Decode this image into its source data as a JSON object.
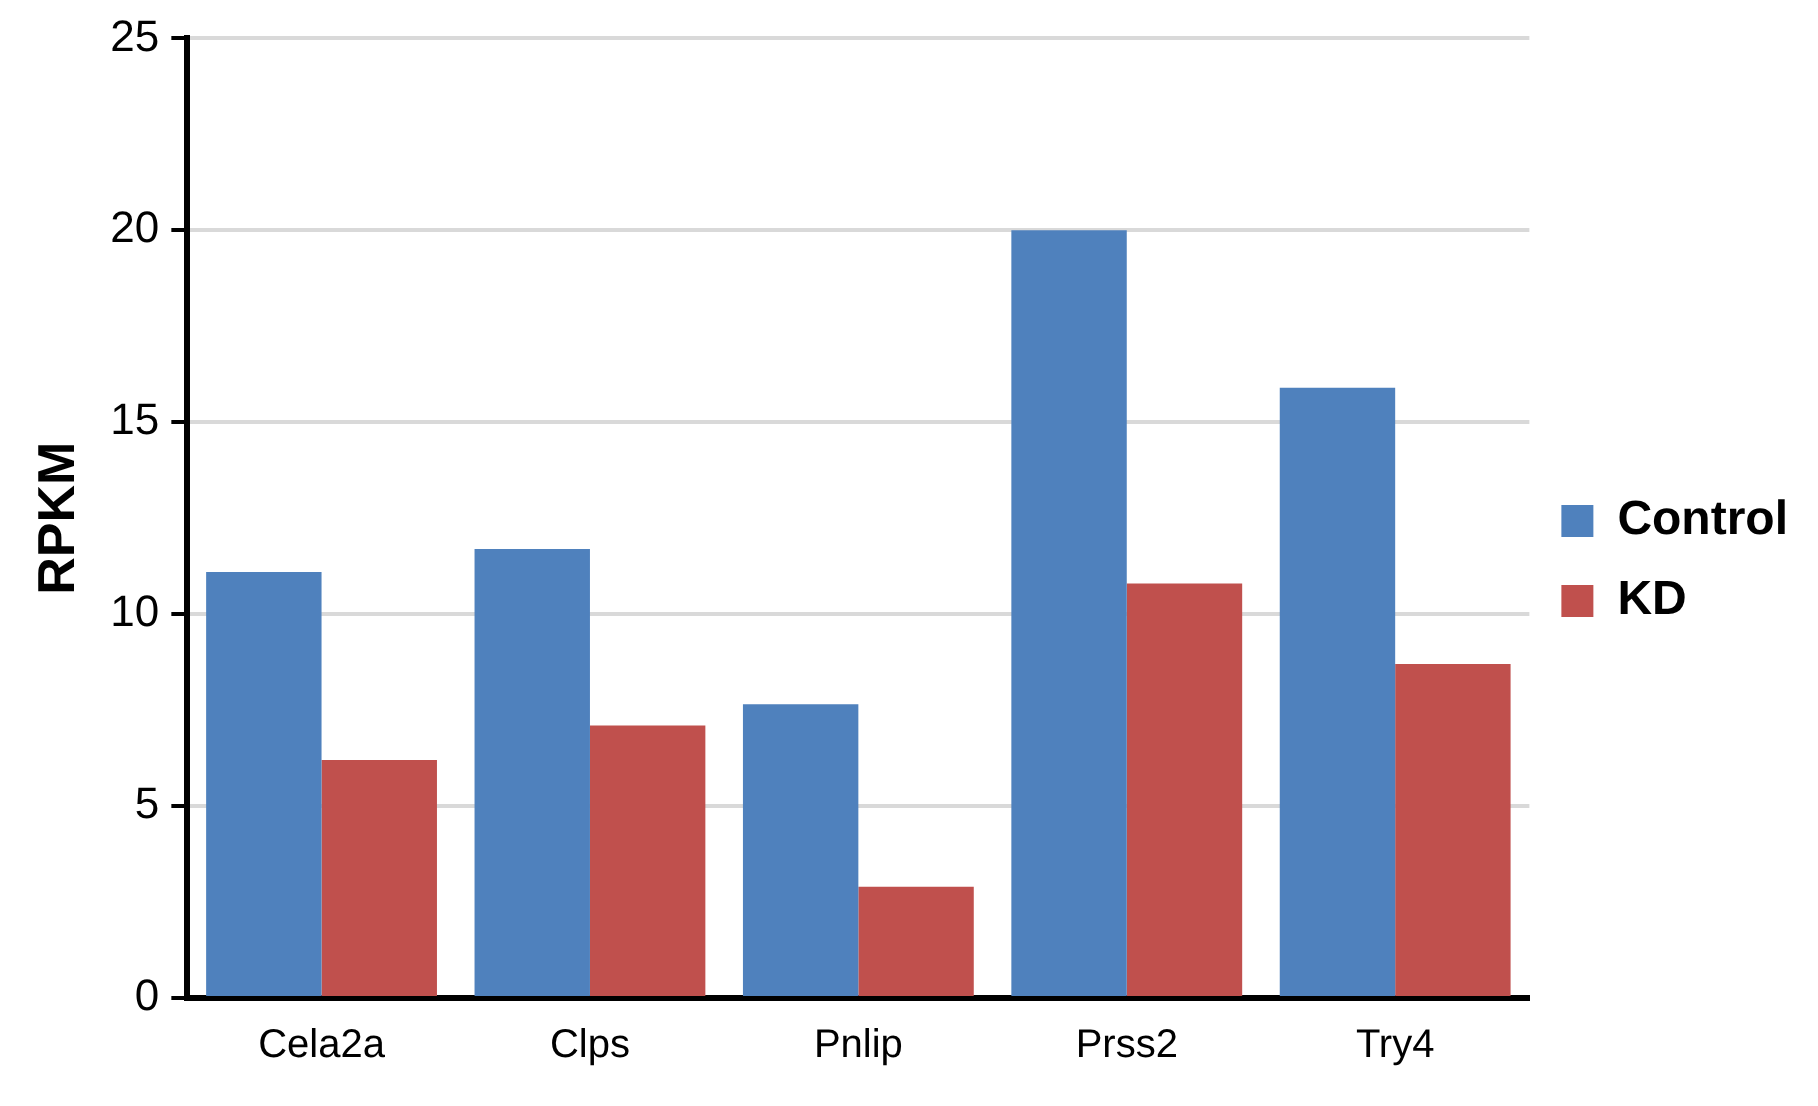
{
  "chart_data": {
    "type": "bar",
    "ylabel": "RPKM",
    "categories": [
      "Cela2a",
      "Clps",
      "Pnlip",
      "Prss2",
      "Try4"
    ],
    "series": [
      {
        "name": "Control",
        "color": "#4f81bd",
        "values": [
          11.1,
          11.7,
          7.65,
          20.0,
          15.9
        ]
      },
      {
        "name": "KD",
        "color": "#c0504d",
        "values": [
          6.2,
          7.1,
          2.9,
          10.8,
          8.7
        ]
      }
    ],
    "ylim": [
      0,
      25
    ],
    "yticks": [
      0,
      5,
      10,
      15,
      20,
      25
    ],
    "grid": "y",
    "legend": "right"
  }
}
